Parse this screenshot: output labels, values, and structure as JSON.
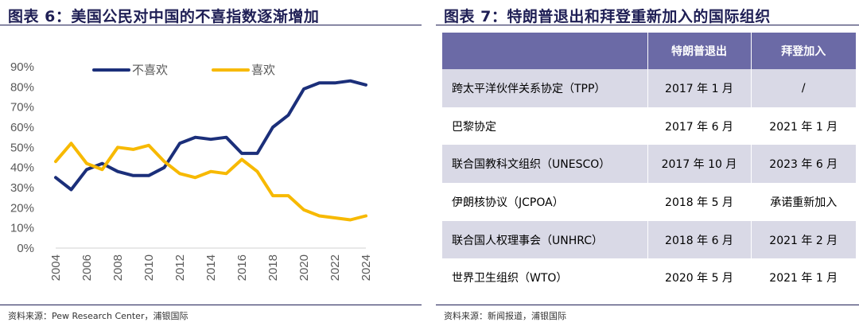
{
  "left": {
    "title": "图表 6：美国公民对中国的不喜指数逐渐增加",
    "source": "资料来源：Pew Research Center，浦银国际"
  },
  "chart_data": {
    "type": "line",
    "title": "美国公民对中国的不喜指数逐渐增加",
    "x": [
      2004,
      2005,
      2006,
      2007,
      2008,
      2009,
      2010,
      2011,
      2012,
      2013,
      2014,
      2015,
      2016,
      2017,
      2018,
      2019,
      2020,
      2021,
      2022,
      2023,
      2024
    ],
    "x_ticks": [
      "2004",
      "2006",
      "2008",
      "2010",
      "2012",
      "2014",
      "2016",
      "2018",
      "2020",
      "2022",
      "2024"
    ],
    "y_ticks": [
      "0%",
      "10%",
      "20%",
      "30%",
      "40%",
      "50%",
      "60%",
      "70%",
      "80%",
      "90%"
    ],
    "ylim": [
      0,
      90
    ],
    "xlabel": "",
    "ylabel": "",
    "legend_position": "top",
    "series": [
      {
        "name": "不喜欢",
        "color": "#1b2f7a",
        "values": [
          35,
          29,
          39,
          42,
          38,
          36,
          36,
          40,
          52,
          55,
          54,
          55,
          47,
          47,
          60,
          66,
          79,
          82,
          82,
          83,
          81
        ]
      },
      {
        "name": "喜欢",
        "color": "#f7b900",
        "values": [
          43,
          52,
          42,
          39,
          50,
          49,
          51,
          43,
          37,
          35,
          38,
          37,
          44,
          38,
          26,
          26,
          19,
          16,
          15,
          14,
          16
        ]
      }
    ]
  },
  "right": {
    "title": "图表 7：特朗普退出和拜登重新加入的国际组织",
    "source": "资料来源：新闻报道，浦银国际",
    "header_color": "#6b6aa6",
    "shade_color": "#d9d9e6",
    "columns": [
      "",
      "特朗普退出",
      "拜登加入"
    ],
    "rows": [
      {
        "name": "跨太平洋伙伴关系协定（TPP）",
        "exit": "2017 年 1 月",
        "join": "/"
      },
      {
        "name": "巴黎协定",
        "exit": "2017 年 6 月",
        "join": "2021 年 1 月"
      },
      {
        "name": "联合国教科文组织（UNESCO）",
        "exit": "2017 年 10 月",
        "join": "2023 年 6 月"
      },
      {
        "name": "伊朗核协议（JCPOA）",
        "exit": "2018 年 5 月",
        "join": "承诺重新加入"
      },
      {
        "name": "联合国人权理事会（UNHRC）",
        "exit": "2018 年 6 月",
        "join": "2021 年 2 月"
      },
      {
        "name": "世界卫生组织（WTO）",
        "exit": "2020 年 5 月",
        "join": "2021 年 1 月"
      }
    ]
  }
}
